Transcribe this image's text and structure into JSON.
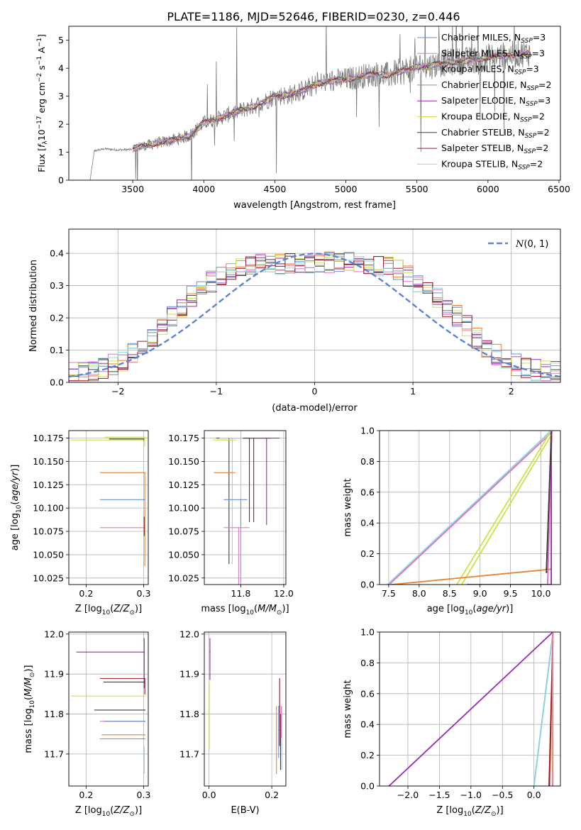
{
  "figure_title": "PLATE=1186, MJD=52646, FIBERID=0230, z=0.446",
  "colors": {
    "chabrier_miles": "#6a8fd6",
    "salpeter_miles": "#e377c2",
    "kroupa_miles": "#ef7f2b",
    "chabrier_elodie": "#8c8c8c",
    "salpeter_elodie": "#9a28b4",
    "kroupa_elodie": "#cfe04a",
    "chabrier_stelib": "#3f3f3f",
    "salpeter_stelib": "#a0162a",
    "kroupa_stelib": "#8fd6e0",
    "normal_curve": "#5b84d6",
    "grid": "#b0b0b0"
  },
  "chart_data": [
    {
      "id": "spectrum",
      "type": "line",
      "xlabel": "wavelength [Angstrom, rest frame]",
      "ylabel": "Flux [f_λ 10^-17 erg cm^-2 s^-1 A^-1]",
      "xlim": [
        3050,
        6510
      ],
      "ylim": [
        0,
        5.5
      ],
      "xticks": [
        3500,
        4000,
        4500,
        5000,
        5500,
        6000,
        6500
      ],
      "yticks": [
        0,
        1,
        2,
        3,
        4,
        5
      ],
      "grid": false,
      "legend_position": "top-right",
      "legend": [
        {
          "label": "Chabrier MILES, N_SSP=3",
          "color_key": "chabrier_miles"
        },
        {
          "label": "Salpeter MILES, N_SSP=3",
          "color_key": "salpeter_miles"
        },
        {
          "label": "Kroupa MILES, N_SSP=3",
          "color_key": "kroupa_miles"
        },
        {
          "label": "Chabrier ELODIE, N_SSP=2",
          "color_key": "chabrier_elodie"
        },
        {
          "label": "Salpeter ELODIE, N_SSP=3",
          "color_key": "salpeter_elodie"
        },
        {
          "label": "Kroupa ELODIE, N_SSP=2",
          "color_key": "kroupa_elodie"
        },
        {
          "label": "Chabrier STELIB, N_SSP=2",
          "color_key": "chabrier_stelib"
        },
        {
          "label": "Salpeter STELIB, N_SSP=2",
          "color_key": "salpeter_stelib"
        },
        {
          "label": "Kroupa STELIB, N_SSP=2",
          "color_key": "kroupa_stelib"
        }
      ],
      "legend_texts": [
        {
          "prefix": "Chabrier MILES, N",
          "sub": "SSP",
          "suffix": "=3"
        },
        {
          "prefix": "Salpeter MILES, N",
          "sub": "SSP",
          "suffix": "=3"
        },
        {
          "prefix": "Kroupa MILES, N",
          "sub": "SSP",
          "suffix": "=3"
        },
        {
          "prefix": "Chabrier ELODIE, N",
          "sub": "SSP",
          "suffix": "=2"
        },
        {
          "prefix": "Salpeter ELODIE, N",
          "sub": "SSP",
          "suffix": "=3"
        },
        {
          "prefix": "Kroupa ELODIE, N",
          "sub": "SSP",
          "suffix": "=2"
        },
        {
          "prefix": "Chabrier STELIB, N",
          "sub": "SSP",
          "suffix": "=2"
        },
        {
          "prefix": "Salpeter STELIB, N",
          "sub": "SSP",
          "suffix": "=2"
        },
        {
          "prefix": "Kroupa STELIB, N",
          "sub": "SSP",
          "suffix": "=2"
        }
      ],
      "data_envelope": {
        "wavelength": [
          3200,
          3230,
          3300,
          3400,
          3500,
          3550,
          3700,
          3800,
          3900,
          4000,
          4100,
          4200,
          4300,
          4400,
          4500,
          4600,
          4700,
          4800,
          4900,
          5000,
          5100,
          5200,
          5300,
          5400,
          5500,
          5600,
          5700,
          5800,
          5900,
          6000,
          6100,
          6200,
          6300
        ],
        "flux": [
          0.0,
          1.05,
          1.12,
          1.08,
          1.1,
          1.2,
          1.35,
          1.45,
          1.6,
          2.05,
          2.2,
          2.4,
          2.55,
          2.75,
          3.0,
          3.05,
          3.2,
          3.45,
          3.55,
          3.6,
          3.7,
          3.8,
          3.75,
          3.9,
          4.05,
          4.1,
          4.2,
          4.25,
          4.3,
          4.4,
          4.45,
          4.5,
          4.55
        ]
      },
      "model_start_wavelength": 3500
    },
    {
      "id": "residual_histogram",
      "type": "line",
      "xlabel": "(data-model)/error",
      "ylabel": "Normed distribution",
      "xlim": [
        -2.5,
        2.5
      ],
      "ylim": [
        0,
        0.475
      ],
      "xticks": [
        -2,
        -1,
        0,
        1,
        2
      ],
      "yticks": [
        0.0,
        0.1,
        0.2,
        0.3,
        0.4
      ],
      "grid": true,
      "legend_position": "top-right",
      "legend_label": "N(0,1)",
      "legend_script": "N",
      "legend_args": "(0, 1)",
      "bin_edges_start": -2.5,
      "bin_width": 0.1,
      "reference_curve": {
        "type": "normal",
        "mean": 0,
        "sigma": 1
      }
    },
    {
      "id": "age_vs_metallicity",
      "type": "scatter",
      "xlabel_prefix": "Z [log",
      "xlabel_sub": "10",
      "xlabel_italic": "Z/Z",
      "xlabel_sun": "⊙",
      "xlabel_suffix": ")]",
      "ylabel_prefix": "age  [log",
      "ylabel_sub": "10",
      "ylabel_italic": "age/yr",
      "ylabel_suffix": ")]",
      "xlim": [
        0.17,
        0.308
      ],
      "ylim": [
        10.018,
        10.183
      ],
      "xticks": [
        0.2,
        0.3
      ],
      "yticks": [
        10.025,
        10.05,
        10.075,
        10.1,
        10.125,
        10.15,
        10.175
      ],
      "grid": true,
      "points": [
        {
          "x": 0.302,
          "y": 10.176,
          "xerr": [
            0.07,
            0.0
          ],
          "yerr": [
            0.01,
            0.0
          ],
          "color_key": "kroupa_elodie"
        },
        {
          "x": 0.3,
          "y": 10.174,
          "xerr": [
            0.06,
            0.0
          ],
          "yerr": [
            0.002,
            0.0
          ],
          "color_key": "chabrier_stelib"
        },
        {
          "x": 0.302,
          "y": 10.173,
          "xerr": [
            0.128,
            0.0
          ],
          "yerr": [
            0.0,
            0.0
          ],
          "color_key": "kroupa_elodie"
        },
        {
          "x": 0.302,
          "y": 10.138,
          "xerr": [
            0.078,
            0.0
          ],
          "yerr": [
            0.1,
            0.0
          ],
          "color_key": "kroupa_miles"
        },
        {
          "x": 0.302,
          "y": 10.109,
          "xerr": [
            0.078,
            0.0
          ],
          "yerr": [
            0.0,
            0.0
          ],
          "color_key": "chabrier_miles"
        },
        {
          "x": 0.302,
          "y": 10.079,
          "xerr": [
            0.078,
            0.0
          ],
          "yerr": [
            0.0,
            0.0
          ],
          "color_key": "salpeter_miles"
        },
        {
          "x": 0.301,
          "y": 10.09,
          "xerr": [
            0.0,
            0.0
          ],
          "yerr": [
            0.02,
            0.0
          ],
          "color_key": "salpeter_stelib"
        }
      ]
    },
    {
      "id": "age_vs_mass",
      "type": "scatter",
      "xlabel_prefix": "mass [log",
      "xlabel_sub": "10",
      "xlabel_italic": "M/M",
      "xlabel_sun": "⊙",
      "xlabel_suffix": ")]",
      "xlim": [
        11.63,
        12.01
      ],
      "ylim": [
        10.018,
        10.183
      ],
      "xticks": [
        11.8,
        12.0
      ],
      "yticks": [
        10.025,
        10.05,
        10.075,
        10.1,
        10.125,
        10.15,
        10.175
      ],
      "grid": true,
      "points": [
        {
          "x": 11.745,
          "y": 10.175,
          "xerr": [
            0.06,
            0.1
          ],
          "yerr": [
            0.135,
            0.0
          ],
          "color_key": "chabrier_stelib"
        },
        {
          "x": 11.76,
          "y": 10.175,
          "xerr": [
            0.06,
            0.08
          ],
          "yerr": [
            0.135,
            0.0
          ],
          "color_key": "kroupa_stelib"
        },
        {
          "x": 11.84,
          "y": 10.175,
          "xerr": [
            0.03,
            0.1
          ],
          "yerr": [
            0.09,
            0.0
          ],
          "color_key": "salpeter_stelib"
        },
        {
          "x": 11.86,
          "y": 10.175,
          "xerr": [
            0.03,
            0.08
          ],
          "yerr": [
            0.09,
            0.0
          ],
          "color_key": "salpeter_stelib"
        },
        {
          "x": 11.92,
          "y": 10.175,
          "xerr": [
            0.08,
            0.06
          ],
          "yerr": [
            0.093,
            0.0
          ],
          "color_key": "salpeter_elodie"
        },
        {
          "x": 11.72,
          "y": 10.173,
          "xerr": [
            0.05,
            0.06
          ],
          "yerr": [
            0.0,
            0.0
          ],
          "color_key": "kroupa_elodie"
        },
        {
          "x": 11.745,
          "y": 10.138,
          "xerr": [
            0.07,
            0.03
          ],
          "yerr": [
            0.0,
            0.0
          ],
          "color_key": "kroupa_miles"
        },
        {
          "x": 11.8,
          "y": 10.109,
          "xerr": [
            0.08,
            0.03
          ],
          "yerr": [
            0.065,
            0.0
          ],
          "color_key": "chabrier_miles"
        },
        {
          "x": 11.8,
          "y": 10.079,
          "xerr": [
            0.08,
            0.04
          ],
          "yerr": [
            0.06,
            0.0
          ],
          "color_key": "salpeter_miles"
        },
        {
          "x": 11.79,
          "y": 10.079,
          "xerr": [
            0.0,
            0.0
          ],
          "yerr": [
            0.07,
            0.0
          ],
          "color_key": "salpeter_miles"
        }
      ]
    },
    {
      "id": "mass_weight_vs_age",
      "type": "line",
      "xlabel_prefix": "age  [log",
      "xlabel_sub": "10",
      "xlabel_italic": "age/yr",
      "xlabel_suffix": ")]",
      "ylabel": "mass weight",
      "xlim": [
        7.35,
        10.32
      ],
      "ylim": [
        0,
        1.0
      ],
      "xticks": [
        7.5,
        8.0,
        8.5,
        9.0,
        9.5,
        10.0
      ],
      "yticks": [
        0.0,
        0.2,
        0.4,
        0.6,
        0.8,
        1.0
      ],
      "grid": true,
      "series": [
        {
          "color_key": "chabrier_miles",
          "x": [
            7.5,
            10.17,
            10.11
          ],
          "y": [
            0.0,
            1.0,
            0.0
          ]
        },
        {
          "color_key": "kroupa_stelib",
          "x": [
            7.48,
            10.17
          ],
          "y": [
            0.0,
            1.0
          ]
        },
        {
          "color_key": "salpeter_miles",
          "x": [
            7.51,
            10.18,
            10.11
          ],
          "y": [
            0.0,
            0.99,
            0.0
          ]
        },
        {
          "color_key": "kroupa_elodie",
          "x": [
            8.62,
            10.17
          ],
          "y": [
            0.0,
            1.0
          ]
        },
        {
          "color_key": "kroupa_elodie",
          "x": [
            8.7,
            10.17
          ],
          "y": [
            0.0,
            0.97
          ]
        },
        {
          "color_key": "kroupa_miles",
          "x": [
            7.55,
            10.17
          ],
          "y": [
            0.0,
            0.1
          ]
        },
        {
          "color_key": "salpeter_elodie",
          "x": [
            8.8,
            10.17,
            10.17
          ],
          "y": [
            0.0,
            0.0,
            0.96
          ]
        },
        {
          "color_key": "salpeter_stelib",
          "x": [
            10.09,
            10.17
          ],
          "y": [
            0.1,
            0.95
          ]
        },
        {
          "color_key": "chabrier_stelib",
          "x": [
            10.09,
            10.17
          ],
          "y": [
            0.08,
            0.99
          ]
        }
      ]
    },
    {
      "id": "mass_vs_metallicity",
      "type": "scatter",
      "xlabel_prefix": "Z [log",
      "xlabel_sub": "10",
      "xlabel_italic": "Z/Z",
      "xlabel_sun": "⊙",
      "xlabel_suffix": ")]",
      "ylabel_prefix": "mass [log",
      "ylabel_sub": "10",
      "ylabel_italic": "M/M",
      "ylabel_sun": "⊙",
      "ylabel_suffix": ")]",
      "xlim": [
        0.17,
        0.308
      ],
      "ylim": [
        11.62,
        12.005
      ],
      "xticks": [
        0.2,
        0.3
      ],
      "yticks": [
        11.7,
        11.8,
        11.9,
        12.0
      ],
      "grid": true,
      "points": [
        {
          "x": 0.301,
          "y": 11.955,
          "xerr": [
            0.118,
            0.0
          ],
          "yerr": [
            0.09,
            0.035
          ],
          "color_key": "salpeter_elodie"
        },
        {
          "x": 0.302,
          "y": 11.889,
          "xerr": [
            0.078,
            0.0
          ],
          "yerr": [
            0.04,
            0.0
          ],
          "color_key": "salpeter_stelib"
        },
        {
          "x": 0.302,
          "y": 11.88,
          "xerr": [
            0.072,
            0.0
          ],
          "yerr": [
            0.0,
            0.0
          ],
          "color_key": "chabrier_stelib"
        },
        {
          "x": 0.302,
          "y": 11.845,
          "xerr": [
            0.128,
            0.0
          ],
          "yerr": [
            0.0,
            0.0
          ],
          "color_key": "kroupa_elodie"
        },
        {
          "x": 0.302,
          "y": 11.81,
          "xerr": [
            0.088,
            0.0
          ],
          "yerr": [
            0.0,
            0.0
          ],
          "color_key": "chabrier_stelib"
        },
        {
          "x": 0.302,
          "y": 11.782,
          "xerr": [
            0.078,
            0.0
          ],
          "yerr": [
            0.0,
            0.0
          ],
          "color_key": "salpeter_miles"
        },
        {
          "x": 0.302,
          "y": 11.782,
          "xerr": [
            0.07,
            0.0
          ],
          "yerr": [
            0.0,
            0.0
          ],
          "color_key": "chabrier_miles"
        },
        {
          "x": 0.302,
          "y": 11.748,
          "xerr": [
            0.075,
            0.0
          ],
          "yerr": [
            0.0,
            0.0
          ],
          "color_key": "kroupa_miles"
        },
        {
          "x": 0.302,
          "y": 11.738,
          "xerr": [
            0.078,
            0.0
          ],
          "yerr": [
            0.0,
            0.0
          ],
          "color_key": "chabrier_miles"
        },
        {
          "x": 0.301,
          "y": 11.7,
          "xerr": [
            0.0,
            0.0
          ],
          "yerr": [
            0.05,
            0.02
          ],
          "color_key": "kroupa_stelib"
        }
      ]
    },
    {
      "id": "mass_vs_ebv",
      "type": "scatter",
      "xlabel": "E(B-V)",
      "xlim": [
        -0.015,
        0.245
      ],
      "ylim": [
        11.62,
        12.005
      ],
      "xticks": [
        0.0,
        0.2
      ],
      "yticks": [
        11.7,
        11.8,
        11.9,
        12.0
      ],
      "grid": true,
      "points": [
        {
          "x": 0.003,
          "y": 11.955,
          "xerr": [
            0.0,
            0.0
          ],
          "yerr": [
            0.07,
            0.035
          ],
          "color_key": "salpeter_elodie"
        },
        {
          "x": 0.001,
          "y": 11.84,
          "xerr": [
            0.0,
            0.0
          ],
          "yerr": [
            0.13,
            0.04
          ],
          "color_key": "kroupa_elodie"
        },
        {
          "x": 0.215,
          "y": 11.75,
          "xerr": [
            0.0,
            0.0
          ],
          "yerr": [
            0.1,
            0.07
          ],
          "color_key": "kroupa_miles"
        },
        {
          "x": 0.222,
          "y": 11.76,
          "xerr": [
            0.0,
            0.0
          ],
          "yerr": [
            0.07,
            0.06
          ],
          "color_key": "chabrier_miles"
        },
        {
          "x": 0.225,
          "y": 11.82,
          "xerr": [
            0.0,
            0.0
          ],
          "yerr": [
            0.1,
            0.07
          ],
          "color_key": "salpeter_stelib"
        },
        {
          "x": 0.228,
          "y": 11.78,
          "xerr": [
            0.0,
            0.0
          ],
          "yerr": [
            0.12,
            0.02
          ],
          "color_key": "chabrier_stelib"
        },
        {
          "x": 0.232,
          "y": 11.79,
          "xerr": [
            0.0,
            0.0
          ],
          "yerr": [
            0.13,
            0.03
          ],
          "color_key": "kroupa_stelib"
        },
        {
          "x": 0.23,
          "y": 11.79,
          "xerr": [
            0.0,
            0.0
          ],
          "yerr": [
            0.05,
            0.03
          ],
          "color_key": "salpeter_miles"
        }
      ]
    },
    {
      "id": "mass_weight_vs_metallicity",
      "type": "line",
      "xlabel_prefix": "Z [log",
      "xlabel_sub": "10",
      "xlabel_italic": "Z/Z",
      "xlabel_sun": "⊙",
      "xlabel_suffix": ")]",
      "ylabel": "mass weight",
      "xlim": [
        -2.45,
        0.42
      ],
      "ylim": [
        0,
        1.0
      ],
      "xticks": [
        -2.0,
        -1.5,
        -1.0,
        -0.5,
        0.0
      ],
      "yticks": [
        0.0,
        0.2,
        0.4,
        0.6,
        0.8,
        1.0
      ],
      "grid": true,
      "series": [
        {
          "color_key": "salpeter_elodie",
          "x": [
            -2.3,
            0.3
          ],
          "y": [
            0.0,
            1.0
          ]
        },
        {
          "color_key": "chabrier_miles",
          "x": [
            0.0,
            0.3
          ],
          "y": [
            0.0,
            0.99
          ]
        },
        {
          "color_key": "kroupa_stelib",
          "x": [
            0.0,
            0.3
          ],
          "y": [
            0.0,
            0.98
          ]
        },
        {
          "color_key": "kroupa_miles",
          "x": [
            0.25,
            0.3
          ],
          "y": [
            0.0,
            0.98
          ]
        },
        {
          "color_key": "salpeter_stelib",
          "x": [
            0.24,
            0.3
          ],
          "y": [
            0.0,
            0.94
          ]
        },
        {
          "color_key": "kroupa_elodie",
          "x": [
            0.29,
            0.3
          ],
          "y": [
            0.0,
            1.0
          ]
        },
        {
          "color_key": "salpeter_miles",
          "x": [
            0.3,
            0.3
          ],
          "y": [
            0.0,
            1.0
          ]
        }
      ]
    }
  ]
}
